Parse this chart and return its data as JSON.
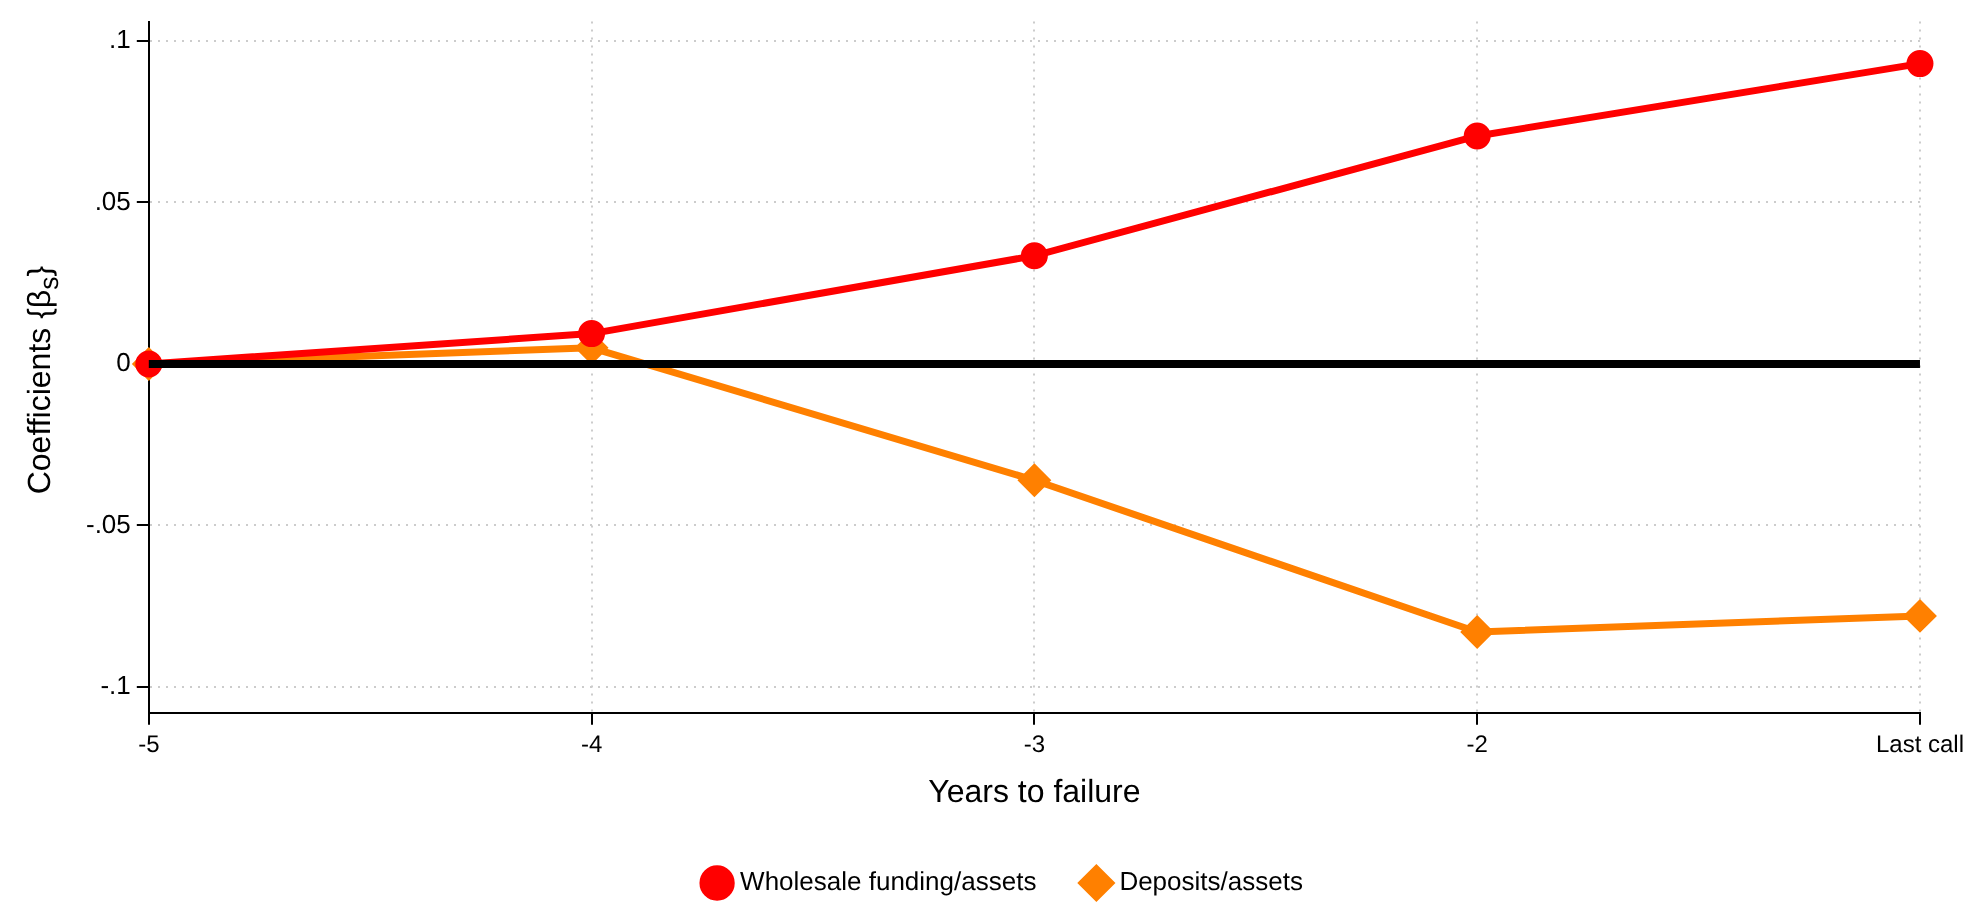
{
  "chart_data": {
    "type": "line",
    "xlabel": "Years to failure",
    "ylabel": "Coefficients {β$_{s}$}",
    "categories": [
      "-5",
      "-4",
      "-3",
      "-2",
      "Last call"
    ],
    "series": [
      {
        "name": "Wholesale funding/assets",
        "color": "#ff0000",
        "marker": "circle",
        "values": [
          0,
          0.0094,
          0.0335,
          0.0706,
          0.093
        ]
      },
      {
        "name": "Deposits/assets",
        "color": "#ff8000",
        "marker": "diamond",
        "values": [
          0,
          0.005,
          -0.036,
          -0.083,
          -0.078
        ]
      }
    ],
    "ylim": [
      -0.108,
      0.106
    ],
    "yticks": [
      {
        "value": -0.1,
        "label": "-.1"
      },
      {
        "value": -0.05,
        "label": "-.05"
      },
      0,
      {
        "value": 0.05,
        "label": ".05"
      },
      {
        "value": 0.1,
        "label": ".1"
      }
    ],
    "ref_lines": [
      {
        "axis": "y",
        "value": 0,
        "color": "#000000"
      }
    ],
    "grid": true,
    "legend": "bottom",
    "line_style": "solid"
  }
}
